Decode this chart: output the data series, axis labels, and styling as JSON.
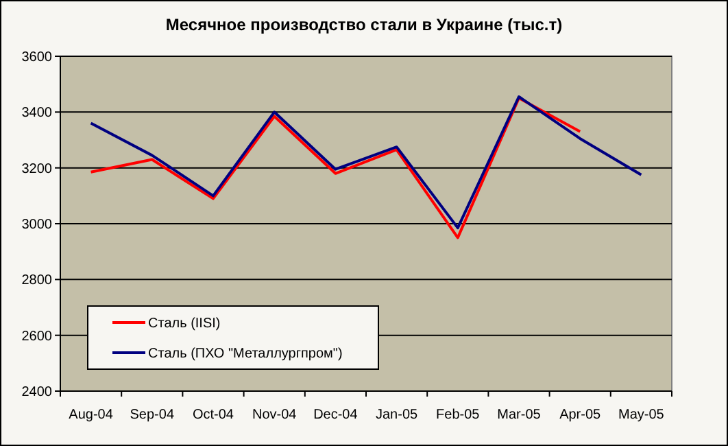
{
  "chart_data": {
    "type": "line",
    "title": "Месячное производство стали в Украине (тыс.т)",
    "categories": [
      "Aug-04",
      "Sep-04",
      "Oct-04",
      "Nov-04",
      "Dec-04",
      "Jan-05",
      "Feb-05",
      "Mar-05",
      "Apr-05",
      "May-05"
    ],
    "series": [
      {
        "name": "Сталь (IISI)",
        "color": "#ff0000",
        "values": [
          3185,
          3230,
          3090,
          3385,
          3180,
          3265,
          2950,
          3450,
          3330,
          null
        ]
      },
      {
        "name": "Сталь (ПХО \"Металлургпром\")",
        "color": "#000080",
        "values": [
          3360,
          3245,
          3100,
          3400,
          3195,
          3275,
          2985,
          3455,
          3305,
          3175
        ]
      }
    ],
    "ylim": [
      2400,
      3600
    ],
    "yticks": [
      2400,
      2600,
      2800,
      3000,
      3200,
      3400,
      3600
    ],
    "grid": "y",
    "legend": "bottom left",
    "marker": "none",
    "line_style": "solid"
  }
}
